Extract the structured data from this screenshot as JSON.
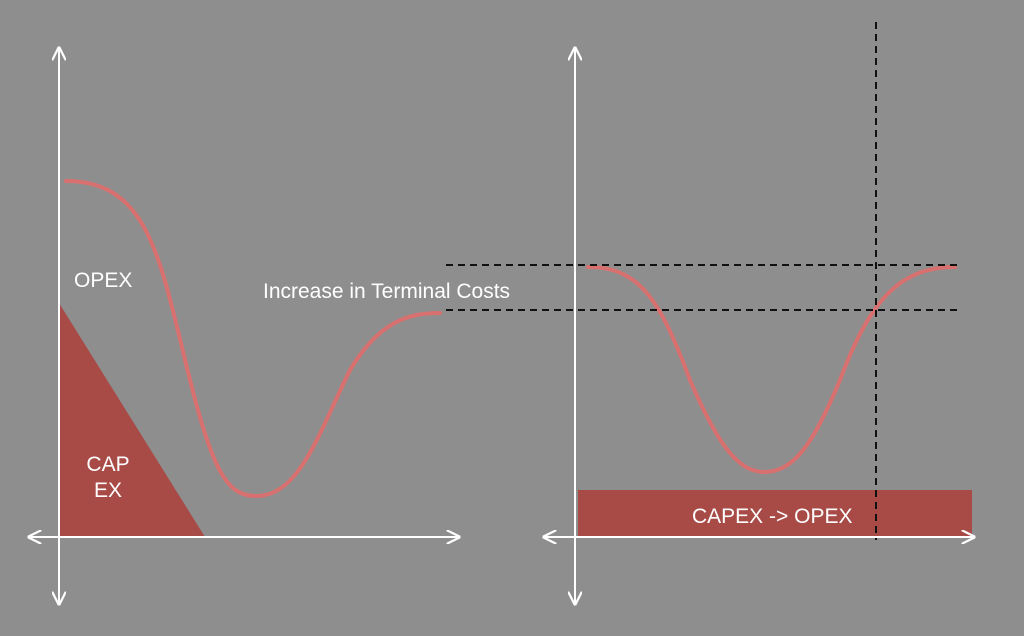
{
  "colors": {
    "background": "#8e8e8e",
    "curve": "#d97070",
    "fill": "#a84b47",
    "axes": "#ffffff",
    "guide": "#111111",
    "text": "#ffffff"
  },
  "left_panel": {
    "opex_label": "OPEX",
    "capex_line1": "CAP",
    "capex_line2": "EX",
    "increase_label": "Increase in Terminal Costs"
  },
  "right_panel": {
    "shift_label": "CAPEX -> OPEX"
  }
}
